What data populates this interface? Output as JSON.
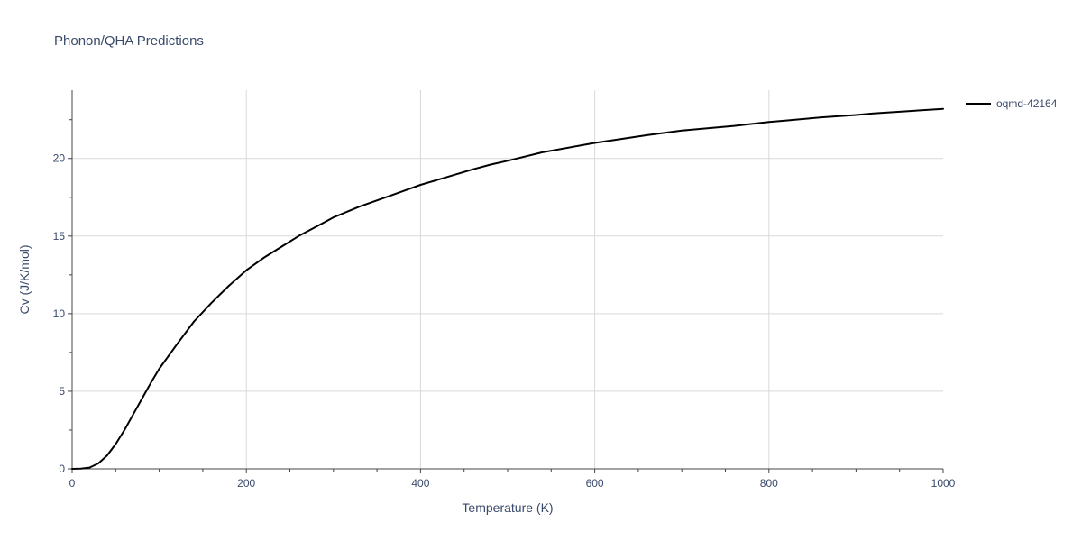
{
  "chart_data": {
    "type": "line",
    "title": "Phonon/QHA Predictions",
    "xlabel": "Temperature (K)",
    "ylabel": "Cv (J/K/mol)",
    "xlim": [
      0,
      1000
    ],
    "ylim": [
      0,
      24.4
    ],
    "x_ticks": [
      0,
      200,
      400,
      600,
      800,
      1000
    ],
    "y_ticks": [
      0,
      5,
      10,
      15,
      20
    ],
    "x_minor_ticks": [
      50,
      100,
      150,
      250,
      300,
      350,
      450,
      500,
      550,
      650,
      700,
      750,
      850,
      900,
      950
    ],
    "y_minor_ticks": [
      2.5,
      7.5,
      12.5,
      17.5,
      22.5
    ],
    "grid": true,
    "legend_position": "top-right",
    "series": [
      {
        "name": "oqmd-42164",
        "color": "#000000",
        "x": [
          0,
          10,
          20,
          30,
          40,
          50,
          60,
          70,
          80,
          90,
          100,
          120,
          140,
          160,
          180,
          200,
          220,
          240,
          260,
          280,
          300,
          330,
          360,
          380,
          400,
          430,
          460,
          480,
          500,
          540,
          600,
          660,
          700,
          760,
          800,
          820,
          860,
          900,
          920,
          960,
          1000
        ],
        "y": [
          0,
          0.01,
          0.08,
          0.35,
          0.85,
          1.6,
          2.5,
          3.5,
          4.5,
          5.5,
          6.45,
          8.0,
          9.5,
          10.7,
          11.8,
          12.8,
          13.6,
          14.3,
          15.0,
          15.6,
          16.2,
          16.9,
          17.5,
          17.9,
          18.3,
          18.8,
          19.3,
          19.6,
          19.85,
          20.4,
          21.0,
          21.5,
          21.8,
          22.1,
          22.35,
          22.45,
          22.65,
          22.8,
          22.9,
          23.05,
          23.2
        ]
      }
    ]
  }
}
